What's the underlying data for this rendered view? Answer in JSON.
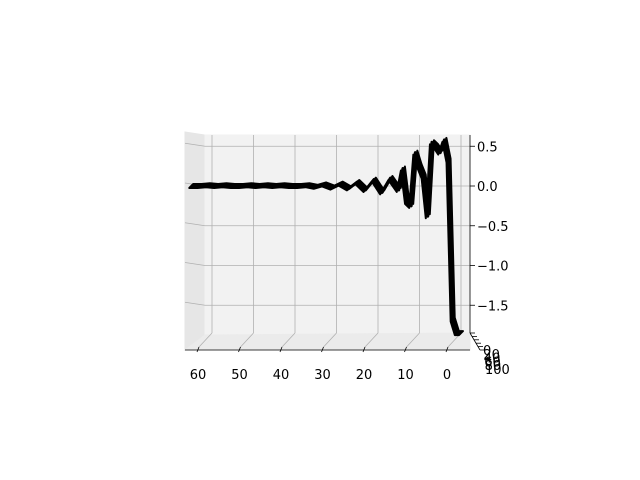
{
  "chart_data": {
    "type": "surface3d",
    "title": "",
    "xlabel": "",
    "ylabel": "",
    "zlabel": "",
    "x_axis": {
      "ticks": [
        60,
        50,
        40,
        30,
        20,
        10,
        0
      ],
      "range": [
        0,
        67
      ]
    },
    "z_axis": {
      "ticks": [
        0.5,
        0.0,
        -0.5,
        -1.0,
        -1.5
      ],
      "tick_labels": [
        "0.5",
        "0.0",
        "−0.5",
        "−1.0",
        "−1.5"
      ],
      "range": [
        -1.9,
        0.6
      ]
    },
    "depth_axis": {
      "ticks": [
        0,
        20,
        40,
        60,
        80,
        100
      ],
      "tick_labels": [
        "0",
        "20",
        "40",
        "60",
        "80",
        "100"
      ],
      "range": [
        0,
        100
      ]
    },
    "surface_color": "#000000",
    "pane_color": "#f2f2f2",
    "grid": true,
    "profile": {
      "x": [
        65,
        63,
        61,
        59,
        57,
        55,
        53,
        51,
        49,
        47,
        45,
        43,
        41,
        39,
        37,
        35,
        33,
        31,
        29,
        27,
        25,
        23,
        21,
        19,
        17,
        15,
        14,
        13,
        12,
        11,
        10,
        9,
        8,
        7,
        6,
        5,
        4,
        3,
        2,
        1,
        0
      ],
      "z": [
        0.0,
        0.0,
        0.01,
        0.0,
        0.01,
        0.0,
        0.0,
        0.01,
        0.0,
        0.01,
        0.0,
        0.01,
        0.0,
        0.0,
        0.01,
        -0.01,
        0.02,
        -0.02,
        0.03,
        -0.03,
        0.05,
        -0.05,
        0.08,
        -0.08,
        0.1,
        -0.05,
        0.22,
        -0.2,
        -0.25,
        0.42,
        0.25,
        0.12,
        -0.38,
        0.55,
        0.5,
        0.42,
        0.58,
        0.32,
        -1.68,
        -1.85,
        -1.85
      ]
    }
  }
}
